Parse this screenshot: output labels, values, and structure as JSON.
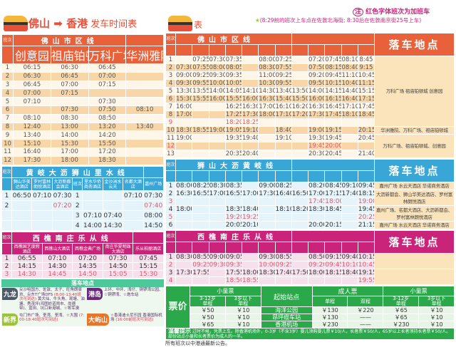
{
  "header": {
    "title_from": "佛山",
    "title_to": "香港",
    "title_suffix": "发车时间表",
    "title_right_tail": "表",
    "note_main": "红色字体班次为加班车",
    "note_badge": "注",
    "note_sub": "(8:29前的班次上车点在佐敦北海街; 8:30后在佐敦南京街25号上车)"
  },
  "icons": {
    "bus": "bus-icon",
    "arrow": "arrow-right-icon",
    "star": "star-icon"
  },
  "colors": {
    "orange": "#e8613a",
    "blue": "#39a6d8",
    "pink": "#c9247a",
    "green": "#2aa84a",
    "extra_run": "#e4566a"
  },
  "left_city": {
    "line": "佛山市区线",
    "trip_label": "班次",
    "stops": [
      "创意园",
      "祖庙铂顿城",
      "万科广场",
      "华洲雅院"
    ],
    "rows": [
      {
        "n": "1",
        "t": [
          "06:15",
          "06:30",
          "06:45",
          ""
        ]
      },
      {
        "n": "2",
        "t": [
          "06:30",
          "06:45",
          "07:00",
          ""
        ]
      },
      {
        "n": "3",
        "t": [
          "06:45",
          "07:00",
          "07:15",
          ""
        ]
      },
      {
        "n": "4",
        "t": [
          "07:00",
          "07:15",
          "",
          ""
        ]
      },
      {
        "n": "5",
        "t": [
          "07:10",
          "",
          "07:30",
          ""
        ]
      },
      {
        "n": "6",
        "t": [
          "",
          "07:30",
          "07:50",
          "08:10"
        ]
      },
      {
        "n": "7",
        "t": [
          "08:10",
          "08:30",
          "08:50",
          ""
        ]
      },
      {
        "n": "8",
        "t": [
          "12:40",
          "13:00",
          "13:20",
          "13:40"
        ]
      },
      {
        "n": "9",
        "t": [
          "13:40",
          "14:00",
          "14:20",
          ""
        ]
      },
      {
        "n": "10",
        "t": [
          "15:10",
          "15:30",
          "15:50",
          ""
        ]
      },
      {
        "n": "11",
        "t": [
          "16:40",
          "17:00",
          "17:20",
          ""
        ]
      },
      {
        "n": "12",
        "t": [
          "17:30",
          "18:00",
          "18:30",
          ""
        ]
      }
    ]
  },
  "cyan": {
    "line": "黄岐大沥狮山里水线",
    "trip_label": "班次",
    "stops_a": [
      "狮山华美达酒店",
      "罗村富林朗悦酒店",
      "大沥新都会酒店"
    ],
    "stops_b": [
      "里水华侨商务酒店",
      "金沙洲水云天",
      "名都大酒店",
      "嘉州广场"
    ],
    "rows_a": [
      {
        "n": "1",
        "t": [
          "06:50",
          "07:10",
          "07:30"
        ]
      },
      {
        "n": "2",
        "red": true,
        "t": [
          "",
          "",
          "07:20"
        ]
      },
      {
        "n": "",
        "t": [
          "",
          "",
          ""
        ]
      },
      {
        "n": "",
        "t": [
          "",
          "",
          ""
        ]
      }
    ],
    "rows_b": [
      {
        "n": "1",
        "t": [
          "",
          "",
          "07:10",
          "07:30"
        ]
      },
      {
        "n": "2",
        "red": true,
        "t": [
          "",
          "",
          "",
          "07:40"
        ]
      },
      {
        "n": "3",
        "t": [
          "07:10",
          "07:40",
          "",
          "08:00"
        ]
      },
      {
        "n": "4",
        "t": [
          "14:00",
          "14:30",
          "",
          "14:50"
        ]
      }
    ]
  },
  "pink_left": {
    "line": "西樵南庄乐从线",
    "trip_label": "班次",
    "stops": [
      "西樵国艺度假酒店",
      "西樵山大酒店",
      "西樵金典广场",
      "南庄华夏明珠大酒店",
      "乐从柏丽酒店"
    ],
    "rows": [
      {
        "n": "1",
        "t": [
          "06:55",
          "07:10",
          "07:20",
          "07:30",
          "07:45"
        ]
      },
      {
        "n": "2",
        "t": [
          "14:15",
          "14:30",
          "14:35",
          "14:50",
          "15:15"
        ]
      },
      {
        "n": "3",
        "red": true,
        "t": [
          "14:30",
          "14:45",
          "14:50",
          "15:05",
          "15:30"
        ]
      }
    ]
  },
  "dropoff_hk": {
    "title": "落车地点",
    "areas": [
      {
        "name": "九龙",
        "text": "尖沙咀国方、佐敦、太子、旺角朗豪坊、尖东T广场DFS",
        "note": "(8:00-13:40班次可到达)",
        "text2": "黄大仙、牛头角、观塘、油塘、秀茂坪(鸿图岭道闹市、尚德邨)、蓝田、坑口新港城、☆将军澳"
      },
      {
        "name": "港岛",
        "text": "上环、中环、湾仔、铜锣湾公园、☆铜锣湾、☆炮车站",
        "note": "",
        "text2": ""
      },
      {
        "name": "新界",
        "text": "屯门市广场、荃湾、荃湾、☆大围",
        "note": "(7:00-18:40班次可到达)",
        "text2": ""
      },
      {
        "name": "大屿山",
        "text": "☆香港迪士尼乐园 香港国际机场",
        "note": "(16:00前班次可到达)",
        "text2": ""
      }
    ]
  },
  "right_city": {
    "line": "佛山市区线",
    "trip_label": "班次",
    "dropoff_label": "落车地点",
    "rows": [
      {
        "n": "1",
        "t": [
          "",
          "07:25",
          "07:30",
          "07:35",
          "",
          "08:00",
          "07:25",
          "",
          "07:20",
          "07:45",
          "08:10",
          "8:45"
        ]
      },
      {
        "n": "2",
        "t": [
          "07:30",
          "07:55",
          "08:00",
          "08:05",
          "",
          "08:30",
          "07:55",
          "",
          "07:50",
          "08:15",
          "08:40",
          "9:15"
        ]
      },
      {
        "n": "3",
        "t": [
          "09:00",
          "09:25",
          "09:30",
          "09:35",
          "",
          "11:00",
          "09:25",
          "",
          "09:20",
          "09:45",
          "11:10",
          "10:45"
        ]
      },
      {
        "n": "4",
        "t": [
          "09:30",
          "09:55",
          "10:00",
          "10:05",
          "",
          "10:30",
          "09:55",
          "",
          "09:50",
          "10:15",
          "10:40",
          "11:15"
        ]
      },
      {
        "n": "5",
        "t": [
          "13:30",
          "13:55",
          "14:00",
          "14:05",
          "14:10",
          "14:30",
          "13:40",
          "13:50",
          "14:00",
          "14:15",
          "14:40",
          "15:15"
        ]
      },
      {
        "n": "6",
        "t": [
          "15:30",
          "15:55",
          "16:00",
          "15:55",
          "16:00",
          "16:30",
          "15:40",
          "15:50",
          "16:00",
          "16:15",
          "16:40",
          "17:15"
        ]
      },
      {
        "n": "7",
        "t": [
          "16:00",
          "",
          "",
          "16:25",
          "16:30",
          "17:00",
          "16:10",
          "16:20",
          "16:30",
          "16:45",
          "17:10",
          "17:45"
        ]
      },
      {
        "n": "8",
        "t": [
          "17:00",
          "",
          "",
          "17:25",
          "17:30",
          "18:00",
          "17:10",
          "17:20",
          "17:30",
          "17:45",
          "18:10",
          "18:45"
        ]
      },
      {
        "n": "9",
        "red": true,
        "t": [
          "",
          "",
          "",
          "18:20",
          "18:25",
          "",
          "",
          "",
          "",
          "",
          "",
          ""
        ]
      },
      {
        "n": "10",
        "t": [
          "18:30",
          "18:55",
          "19:00",
          "19:05",
          "19:10",
          "",
          "18:40",
          "",
          "19:00",
          "19:15",
          "",
          "20:15"
        ]
      },
      {
        "n": "11",
        "t": [
          "19:00",
          "",
          "",
          "19:35",
          "19:40",
          "",
          "19:10",
          "",
          "19:30",
          "19:45",
          "",
          "20:45"
        ]
      },
      {
        "n": "12",
        "red": true,
        "t": [
          "",
          "",
          "",
          "",
          "",
          "",
          "",
          "",
          "19:45",
          "20:00",
          "",
          ""
        ]
      },
      {
        "n": "13",
        "t": [
          "",
          "",
          "",
          "20:35",
          "20:40",
          "",
          "",
          "",
          "20:30",
          "20:45",
          "",
          "21:40"
        ]
      }
    ],
    "dropoffs": [
      {
        "span": 9,
        "text": "万科广场 祖庙铂顿城 创意园"
      },
      {
        "span": 1,
        "text": "华洲雅院、万科广场、祖庙铂顿城"
      },
      {
        "span": 3,
        "text": "万科广场、祖庙铂顿城、创意园"
      }
    ]
  },
  "right_blue": {
    "line": "狮山大沥黄岐线",
    "trip_label": "班次",
    "dropoff_label": "落车地点",
    "rows": [
      {
        "n": "1",
        "t": [
          "08:00",
          "08:25",
          "08:30",
          "08:35",
          "",
          "09:00",
          "08:25",
          "",
          "08:20",
          "08:45",
          "09:10",
          "09:45"
        ]
      },
      {
        "n": "2",
        "t": [
          "16:30",
          "16:55",
          "17:00",
          "16:55",
          "17:00",
          "17:30",
          "16:40",
          "16:50",
          "17:00",
          "17:15",
          "17:40",
          "18:15"
        ]
      },
      {
        "n": "3",
        "red": true,
        "t": [
          "",
          "",
          "",
          "",
          "",
          "",
          "",
          "",
          "17:45",
          "18:00",
          "",
          "19:00"
        ]
      },
      {
        "n": "4",
        "t": [
          "18:00",
          "",
          "",
          "18:35",
          "18:40",
          "",
          "18:10",
          "18:20",
          "18:30",
          "18:45",
          "",
          "19:45"
        ]
      },
      {
        "n": "5",
        "red": true,
        "t": [
          "",
          "",
          "",
          "19:20",
          "19:25",
          "",
          "",
          "",
          "",
          "",
          "",
          "20:25"
        ]
      },
      {
        "n": "6",
        "t": [
          "",
          "",
          "",
          "20:05",
          "20:10",
          "",
          "",
          "",
          "20:00",
          "20:15",
          "",
          "21:15"
        ]
      }
    ],
    "dropoffs": [
      {
        "span": 1,
        "text": "嘉州广场 水云天酒店 华诺商务酒店"
      },
      {
        "span": 2,
        "text": "大沥新都会、狮山华美达酒店、罗村富林朗悦酒店"
      },
      {
        "span": 2,
        "text": "嘉州广场、名都大酒店、大沥新都会、罗村富林朗悦酒店"
      },
      {
        "span": 1,
        "text": "嘉州广场 水云天酒店 华诺商务酒店"
      }
    ]
  },
  "right_pink": {
    "line": "西樵南庄乐从线",
    "trip_label": "班次",
    "dropoff_label": "落车地点",
    "rows": [
      {
        "n": "1",
        "t": [
          "08:30",
          "08:55",
          "09:00",
          "09:05",
          "",
          "09:30",
          "08:55",
          "",
          "08:50",
          "09:15",
          "09:40",
          "10:15"
        ]
      },
      {
        "n": "2",
        "red": true,
        "t": [
          "",
          "09:25",
          "09:30",
          "09:35",
          "",
          "10:00",
          "09:25",
          "",
          "09:20",
          "09:45",
          "10:10",
          "10:45"
        ]
      },
      {
        "n": "3",
        "t": [
          "17:30",
          "17:55",
          "",
          "17:55",
          "18:00",
          "18:30",
          "17:40",
          "17:50",
          "18:00",
          "18:15",
          "18:40",
          "19:15"
        ]
      },
      {
        "n": "4",
        "red": true,
        "t": [
          "",
          "",
          "",
          "18:50",
          "18:55",
          "",
          "",
          "",
          "",
          "",
          "",
          "19:55"
        ]
      }
    ],
    "dropoffs": [
      {
        "span": 2,
        "text": ""
      },
      {
        "span": 2,
        "text": ""
      }
    ]
  },
  "fares": {
    "label": "票价",
    "child": "小童票",
    "adult": "成人票",
    "age_3_12": "3-12岁",
    "under3": "3岁以下",
    "single": "单程",
    "return": "双程",
    "origin": "起始站点",
    "rows": [
      {
        "c1": "￥50",
        "c2": "￥10",
        "stop": "海洋公园",
        "a1": "￥130",
        "a2": "￥220",
        "d1": "￥65",
        "d2": "￥10"
      },
      {
        "c1": "￥50",
        "c2": "￥10",
        "stop": "昂坪缆车站",
        "a1": "￥130",
        "a2": "——",
        "d1": "￥65",
        "d2": "￥10"
      },
      {
        "c1": "￥65",
        "c2": "￥10",
        "stop": "香港机场",
        "a1": "￥230",
        "a2": "——",
        "d1": "￥230",
        "d2": "￥10"
      }
    ],
    "tip_label": "温馨提示",
    "tip": "过时不候，凭票上车。除香港机场外，0-3岁（不含3岁）婴儿须购婴儿票￥10/人，长者票￥50/人，65岁以上长者须持长者票￥50/人。部份站点小童和长者票价为成人的一半。",
    "footer": "所有班次以中港通最新公告。"
  }
}
